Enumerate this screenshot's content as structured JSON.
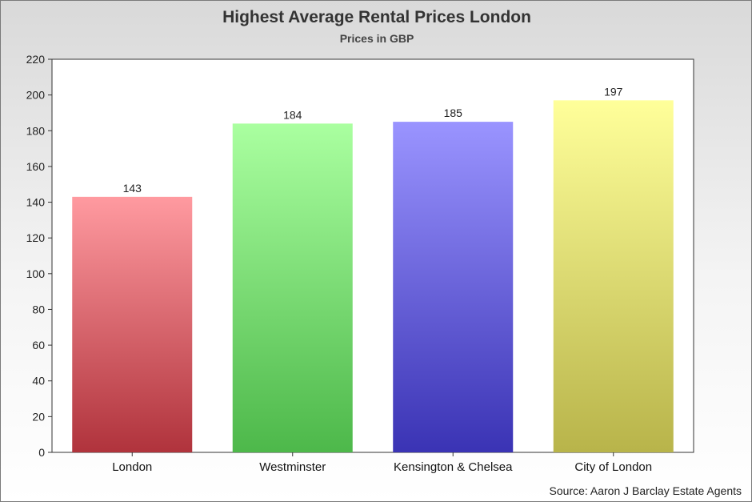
{
  "chart_data": {
    "type": "bar",
    "title": "Highest Average Rental Prices London",
    "subtitle": "Prices in GBP",
    "source": "Source: Aaron J Barclay Estate Agents",
    "categories": [
      "London",
      "Westminster",
      "Kensington & Chelsea",
      "City of London"
    ],
    "values": [
      143,
      184,
      185,
      197
    ],
    "colors": [
      {
        "top": "#ff9aa0",
        "bottom": "#b0333c"
      },
      {
        "top": "#aaffa0",
        "bottom": "#4db84a"
      },
      {
        "top": "#9a94ff",
        "bottom": "#3a33b4"
      },
      {
        "top": "#ffff9a",
        "bottom": "#b8b44a"
      }
    ],
    "ylim": [
      0,
      220
    ],
    "yticks": [
      0,
      20,
      40,
      60,
      80,
      100,
      120,
      140,
      160,
      180,
      200,
      220
    ],
    "xlabel": "",
    "ylabel": "",
    "grid": false,
    "legend": "none"
  }
}
